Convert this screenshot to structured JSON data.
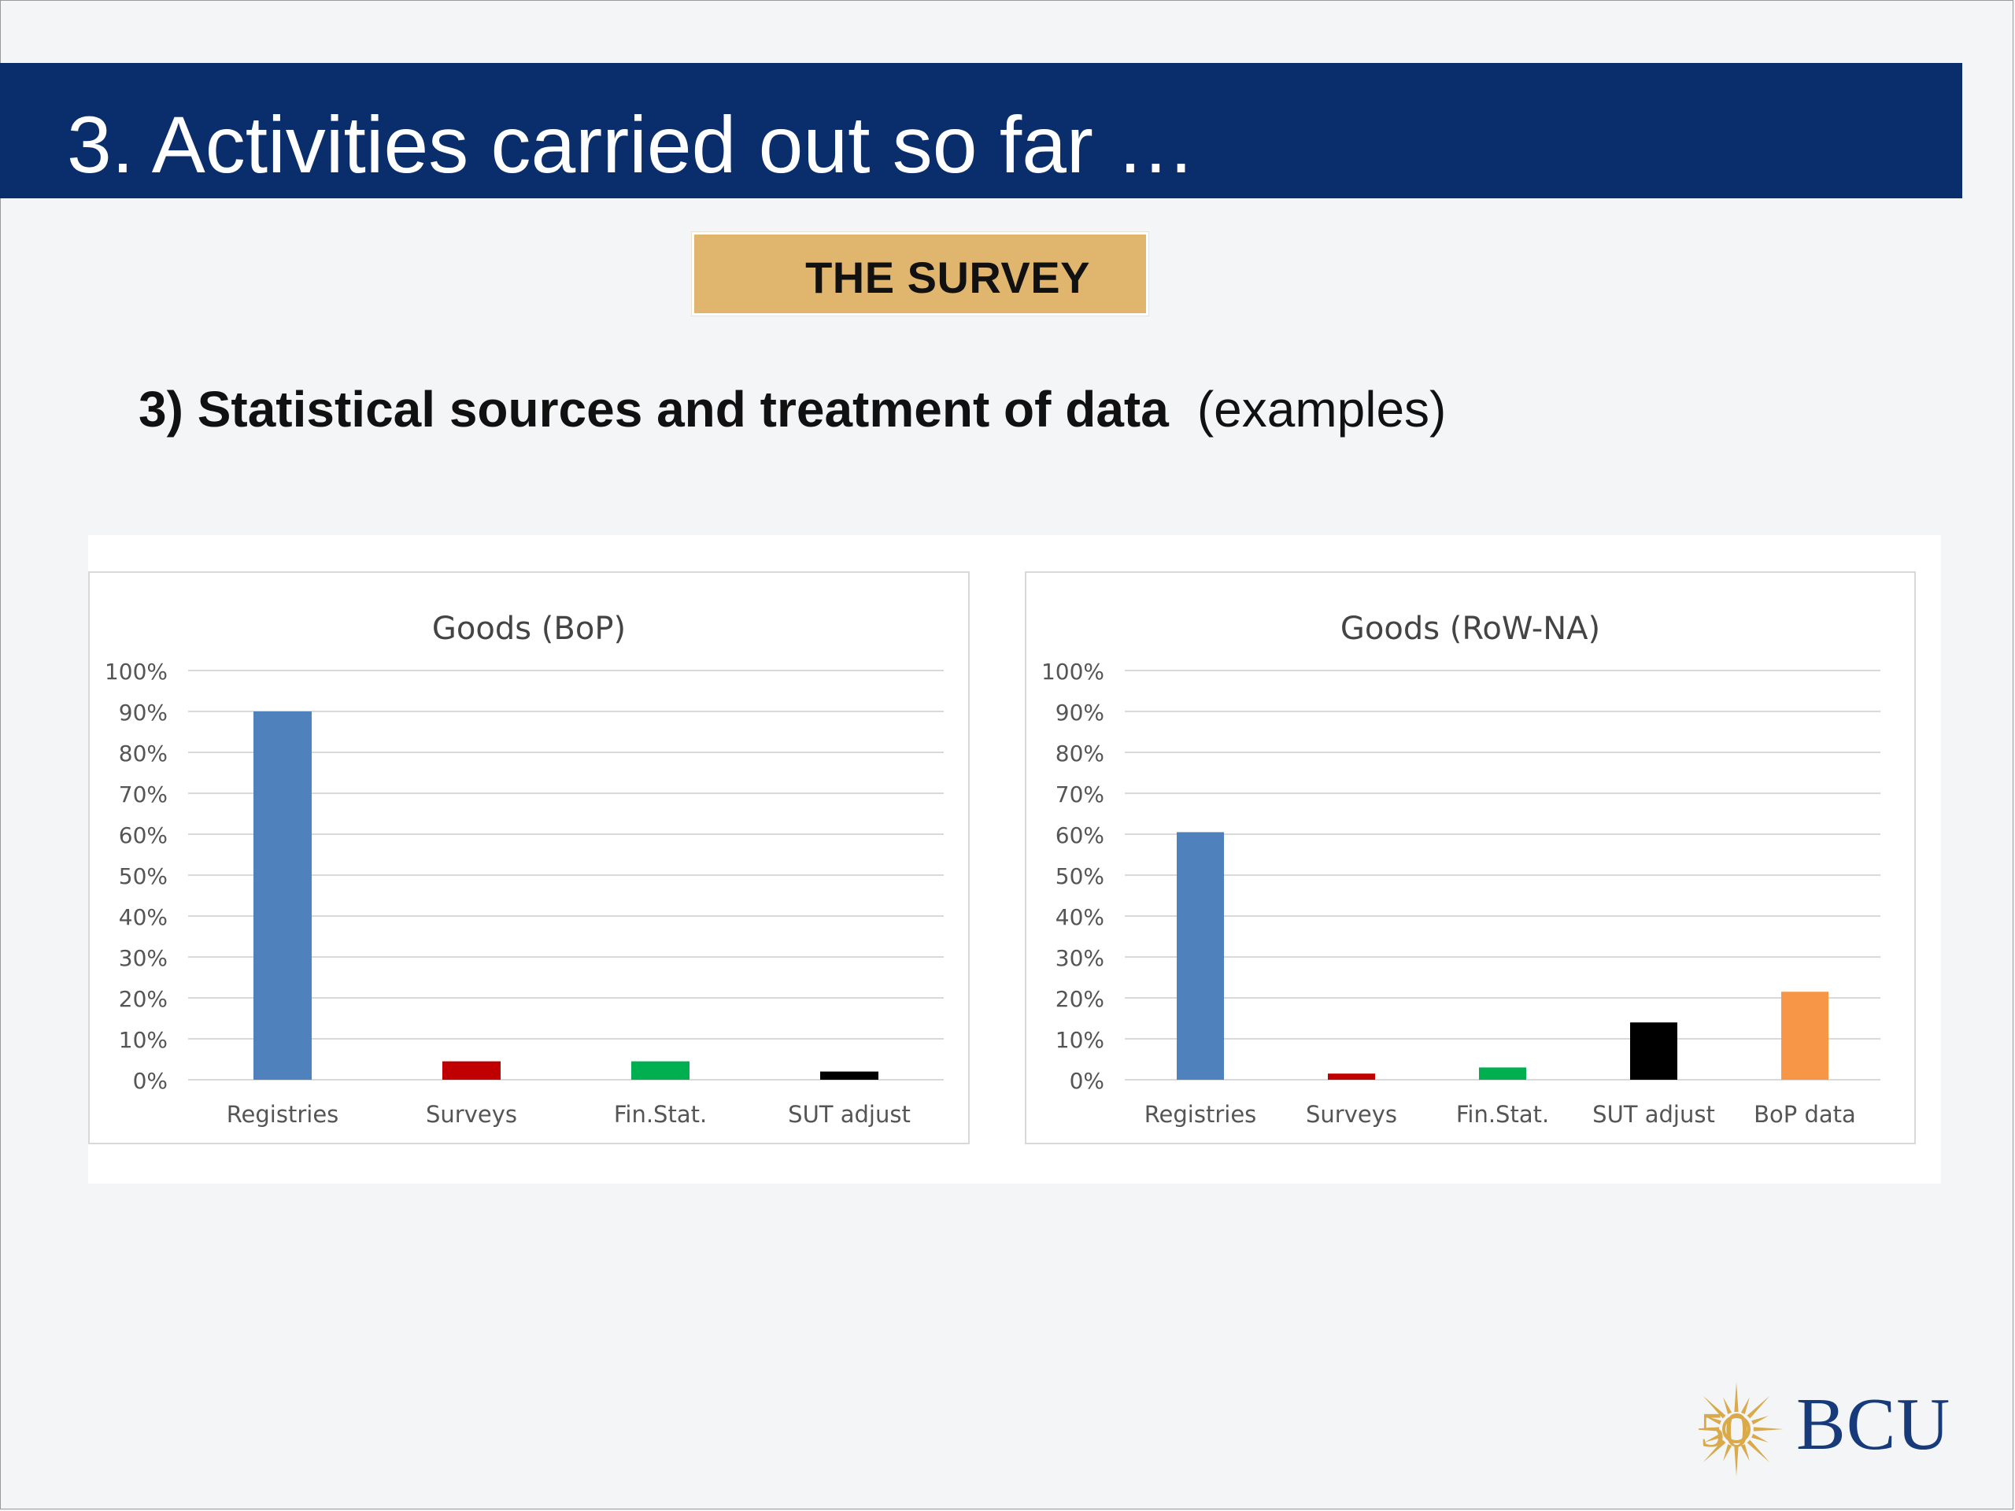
{
  "slide": {
    "title": "3. Activities carried out so far …",
    "badge": "THE SURVEY",
    "subtitle_bold": "3) Statistical sources and treatment of data",
    "subtitle_plain": "(examples)"
  },
  "logo": {
    "text": "BCU",
    "emblem": "50",
    "colors": {
      "text": "#173a7a",
      "emblem": "#d9a94a"
    }
  },
  "colors": {
    "title_bar": "#0a2e6c",
    "badge": "#e0b66f",
    "registries": "#4f81bd",
    "surveys": "#c00000",
    "finstat": "#00b050",
    "sut_adjust": "#000000",
    "bop_data": "#f79646"
  },
  "chart_data": [
    {
      "type": "bar",
      "title": "Goods (BoP)",
      "categories": [
        "Registries",
        "Surveys",
        "Fin.Stat.",
        "SUT adjust"
      ],
      "values": [
        0.9,
        0.045,
        0.045,
        0.02
      ],
      "colors": [
        "#4f81bd",
        "#c00000",
        "#00b050",
        "#000000"
      ],
      "ylim": [
        0,
        1
      ],
      "yticks": [
        "0%",
        "10%",
        "20%",
        "30%",
        "40%",
        "50%",
        "60%",
        "70%",
        "80%",
        "90%",
        "100%"
      ],
      "grid": true,
      "legend": "none"
    },
    {
      "type": "bar",
      "title": "Goods (RoW-NA)",
      "categories": [
        "Registries",
        "Surveys",
        "Fin.Stat.",
        "SUT adjust",
        "BoP data"
      ],
      "values": [
        0.605,
        0.015,
        0.03,
        0.14,
        0.215
      ],
      "colors": [
        "#4f81bd",
        "#c00000",
        "#00b050",
        "#000000",
        "#f79646"
      ],
      "ylim": [
        0,
        1
      ],
      "yticks": [
        "0%",
        "10%",
        "20%",
        "30%",
        "40%",
        "50%",
        "60%",
        "70%",
        "80%",
        "90%",
        "100%"
      ],
      "grid": true,
      "legend": "none"
    }
  ]
}
